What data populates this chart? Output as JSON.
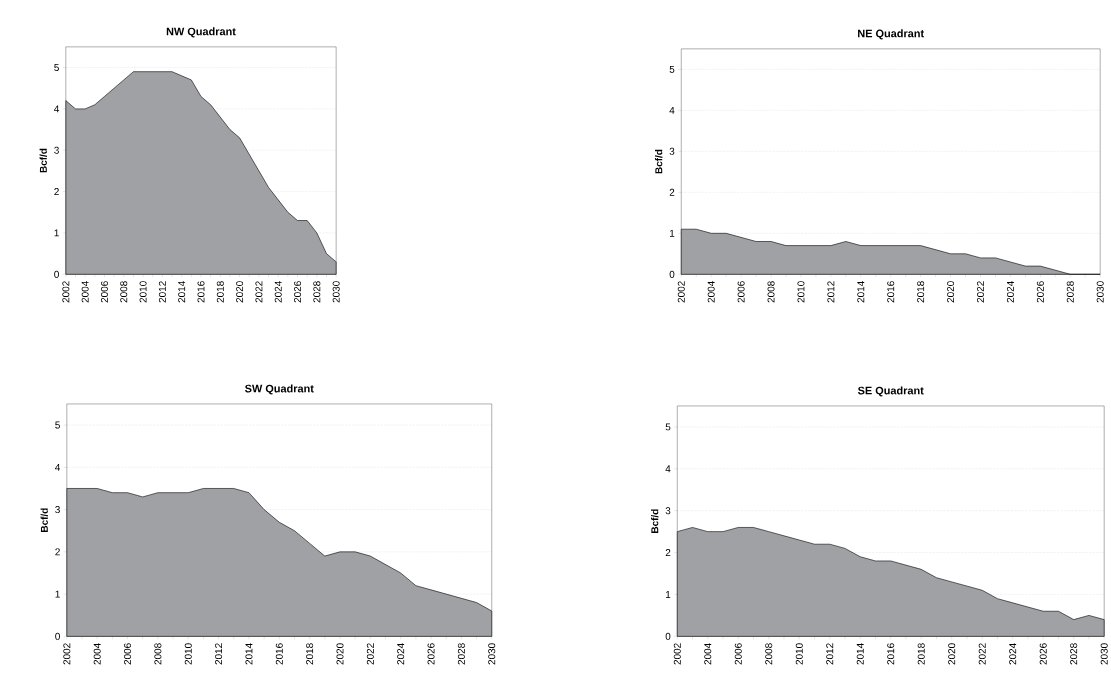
{
  "chart_data": [
    {
      "type": "area",
      "title": "NW Quadrant",
      "ylabel": "Bcf/d",
      "color": "#a0a1a5",
      "grid": "y",
      "xlim": [
        2002,
        2030
      ],
      "ylim": [
        0,
        5.5
      ],
      "yticks": [
        0,
        1,
        2,
        3,
        4,
        5
      ],
      "xticks": [
        2002,
        {
          "value": 2003,
          "label": null
        },
        2004,
        {
          "value": 2005,
          "label": null
        },
        2006,
        {
          "value": 2007,
          "label": null
        },
        2008,
        {
          "value": 2009,
          "label": null
        },
        2010,
        {
          "value": 2011,
          "label": null
        },
        2012,
        {
          "value": 2013,
          "label": null
        },
        2014,
        {
          "value": 2015,
          "label": null
        },
        2016,
        {
          "value": 2017,
          "label": null
        },
        2018,
        {
          "value": 2019,
          "label": null
        },
        2020,
        {
          "value": 2021,
          "label": null
        },
        2022,
        {
          "value": 2023,
          "label": null
        },
        2024,
        {
          "value": 2025,
          "label": null
        },
        2026,
        {
          "value": 2027,
          "label": null
        },
        2028,
        {
          "value": 2029,
          "label": null
        },
        2030
      ],
      "x": [
        2002,
        2003,
        2004,
        2005,
        2006,
        2007,
        2008,
        2009,
        2010,
        2011,
        2012,
        2013,
        2014,
        2015,
        2016,
        2017,
        2018,
        2019,
        2020,
        2021,
        2022,
        2023,
        2024,
        2025,
        2026,
        2027,
        2028,
        2029,
        2030
      ],
      "values": [
        4.2,
        4.0,
        4.0,
        4.1,
        4.3,
        4.5,
        4.7,
        4.9,
        4.9,
        4.9,
        4.9,
        4.9,
        4.8,
        4.7,
        4.3,
        4.1,
        3.8,
        3.5,
        3.3,
        2.9,
        2.5,
        2.1,
        1.8,
        1.5,
        1.3,
        1.3,
        1.0,
        0.5,
        0.3
      ]
    },
    {
      "type": "area",
      "title": "NE Quadrant",
      "ylabel": "Bcf/d",
      "color": "#a0a1a5",
      "grid": "y",
      "xlim": [
        2002,
        2030
      ],
      "ylim": [
        0,
        5.5
      ],
      "yticks": [
        0,
        1,
        2,
        3,
        4,
        5
      ],
      "xticks": [
        2002,
        {
          "value": 2003,
          "label": null
        },
        2004,
        {
          "value": 2005,
          "label": null
        },
        2006,
        {
          "value": 2007,
          "label": null
        },
        2008,
        {
          "value": 2009,
          "label": null
        },
        2010,
        {
          "value": 2011,
          "label": null
        },
        2012,
        {
          "value": 2013,
          "label": null
        },
        2014,
        {
          "value": 2015,
          "label": null
        },
        2016,
        {
          "value": 2017,
          "label": null
        },
        2018,
        {
          "value": 2019,
          "label": null
        },
        2020,
        {
          "value": 2021,
          "label": null
        },
        2022,
        {
          "value": 2023,
          "label": null
        },
        2024,
        {
          "value": 2025,
          "label": null
        },
        2026,
        {
          "value": 2027,
          "label": null
        },
        2028,
        {
          "value": 2029,
          "label": null
        },
        2030
      ],
      "x": [
        2002,
        2003,
        2004,
        2005,
        2006,
        2007,
        2008,
        2009,
        2010,
        2011,
        2012,
        2013,
        2014,
        2015,
        2016,
        2017,
        2018,
        2019,
        2020,
        2021,
        2022,
        2023,
        2024,
        2025,
        2026,
        2027,
        2028,
        2029,
        2030
      ],
      "values": [
        1.1,
        1.1,
        1.0,
        1.0,
        0.9,
        0.8,
        0.8,
        0.7,
        0.7,
        0.7,
        0.7,
        0.8,
        0.7,
        0.7,
        0.7,
        0.7,
        0.7,
        0.6,
        0.5,
        0.5,
        0.4,
        0.4,
        0.3,
        0.2,
        0.2,
        0.1,
        0,
        0,
        0
      ]
    },
    {
      "type": "area",
      "title": "SW Quadrant",
      "ylabel": "Bcf/d",
      "color": "#a0a1a5",
      "grid": "y",
      "xlim": [
        2002,
        2030
      ],
      "ylim": [
        0,
        5.5
      ],
      "yticks": [
        0,
        1,
        2,
        3,
        4,
        5
      ],
      "xticks": [
        2002,
        {
          "value": 2003,
          "label": null
        },
        2004,
        {
          "value": 2005,
          "label": null
        },
        2006,
        {
          "value": 2007,
          "label": null
        },
        2008,
        {
          "value": 2009,
          "label": null
        },
        2010,
        {
          "value": 2011,
          "label": null
        },
        2012,
        {
          "value": 2013,
          "label": null
        },
        2014,
        {
          "value": 2015,
          "label": null
        },
        2016,
        {
          "value": 2017,
          "label": null
        },
        2018,
        {
          "value": 2019,
          "label": null
        },
        2020,
        {
          "value": 2021,
          "label": null
        },
        2022,
        {
          "value": 2023,
          "label": null
        },
        2024,
        {
          "value": 2025,
          "label": null
        },
        2026,
        {
          "value": 2027,
          "label": null
        },
        2028,
        {
          "value": 2029,
          "label": null
        },
        2030
      ],
      "x": [
        2002,
        2003,
        2004,
        2005,
        2006,
        2007,
        2008,
        2009,
        2010,
        2011,
        2012,
        2013,
        2014,
        2015,
        2016,
        2017,
        2018,
        2019,
        2020,
        2021,
        2022,
        2023,
        2024,
        2025,
        2026,
        2027,
        2028,
        2029,
        2030
      ],
      "values": [
        3.5,
        3.5,
        3.5,
        3.4,
        3.4,
        3.3,
        3.4,
        3.4,
        3.4,
        3.5,
        3.5,
        3.5,
        3.4,
        3.0,
        2.7,
        2.5,
        2.2,
        1.9,
        2.0,
        2.0,
        1.9,
        1.7,
        1.5,
        1.2,
        1.1,
        1.0,
        0.9,
        0.8,
        0.6
      ]
    },
    {
      "type": "area",
      "title": "SE Quadrant",
      "ylabel": "Bcf/d",
      "color": "#a0a1a5",
      "grid": "y",
      "xlim": [
        2002,
        2030
      ],
      "ylim": [
        0,
        5.5
      ],
      "yticks": [
        0,
        1,
        2,
        3,
        4,
        5
      ],
      "xticks": [
        2002,
        {
          "value": 2003,
          "label": null
        },
        2004,
        {
          "value": 2005,
          "label": null
        },
        2006,
        {
          "value": 2007,
          "label": null
        },
        2008,
        {
          "value": 2009,
          "label": null
        },
        2010,
        {
          "value": 2011,
          "label": null
        },
        2012,
        {
          "value": 2013,
          "label": null
        },
        2014,
        {
          "value": 2015,
          "label": null
        },
        2016,
        {
          "value": 2017,
          "label": null
        },
        2018,
        {
          "value": 2019,
          "label": null
        },
        2020,
        {
          "value": 2021,
          "label": null
        },
        2022,
        {
          "value": 2023,
          "label": null
        },
        2024,
        {
          "value": 2025,
          "label": null
        },
        2026,
        {
          "value": 2027,
          "label": null
        },
        2028,
        {
          "value": 2029,
          "label": null
        },
        2030
      ],
      "x": [
        2002,
        2003,
        2004,
        2005,
        2006,
        2007,
        2008,
        2009,
        2010,
        2011,
        2012,
        2013,
        2014,
        2015,
        2016,
        2017,
        2018,
        2019,
        2020,
        2021,
        2022,
        2023,
        2024,
        2025,
        2026,
        2027,
        2028,
        2029,
        2030
      ],
      "values": [
        2.5,
        2.6,
        2.5,
        2.5,
        2.6,
        2.6,
        2.5,
        2.4,
        2.3,
        2.2,
        2.2,
        2.1,
        1.9,
        1.8,
        1.8,
        1.7,
        1.6,
        1.4,
        1.3,
        1.2,
        1.1,
        0.9,
        0.8,
        0.7,
        0.6,
        0.6,
        0.4,
        0.5,
        0.4
      ]
    }
  ]
}
